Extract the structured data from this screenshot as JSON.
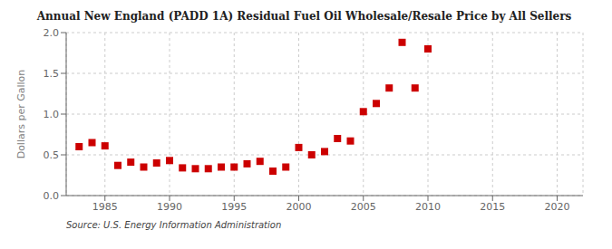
{
  "chart_data": {
    "type": "scatter",
    "title": "Annual New England (PADD 1A) Residual Fuel Oil Wholesale/Resale Price by All Sellers",
    "y_label": "Dollars per Gallon",
    "annotation": "Source: U.S. Energy Information Administration",
    "x": [
      1983,
      1984,
      1985,
      1986,
      1987,
      1988,
      1989,
      1990,
      1991,
      1992,
      1993,
      1994,
      1995,
      1996,
      1997,
      1998,
      1999,
      2000,
      2001,
      2002,
      2003,
      2004,
      2005,
      2006,
      2007,
      2008,
      2009,
      2010
    ],
    "values": [
      0.6,
      0.65,
      0.61,
      0.37,
      0.41,
      0.35,
      0.4,
      0.43,
      0.34,
      0.33,
      0.33,
      0.35,
      0.35,
      0.39,
      0.42,
      0.3,
      0.35,
      0.59,
      0.5,
      0.54,
      0.7,
      0.67,
      1.03,
      1.13,
      1.32,
      1.88,
      1.32,
      1.8
    ],
    "color": "#cc0000",
    "marker": "square",
    "xlim": [
      1982,
      2022
    ],
    "ylim": [
      0.0,
      2.0
    ],
    "xticks": [
      1985,
      1990,
      1995,
      2000,
      2005,
      2010,
      2015,
      2020
    ],
    "yticks": [
      {
        "value": 0.0,
        "label": "0.0"
      },
      0.5,
      {
        "value": 1.0,
        "label": "1.0"
      },
      1.5,
      {
        "value": 2.0,
        "label": "2.0"
      }
    ],
    "grid": true
  }
}
